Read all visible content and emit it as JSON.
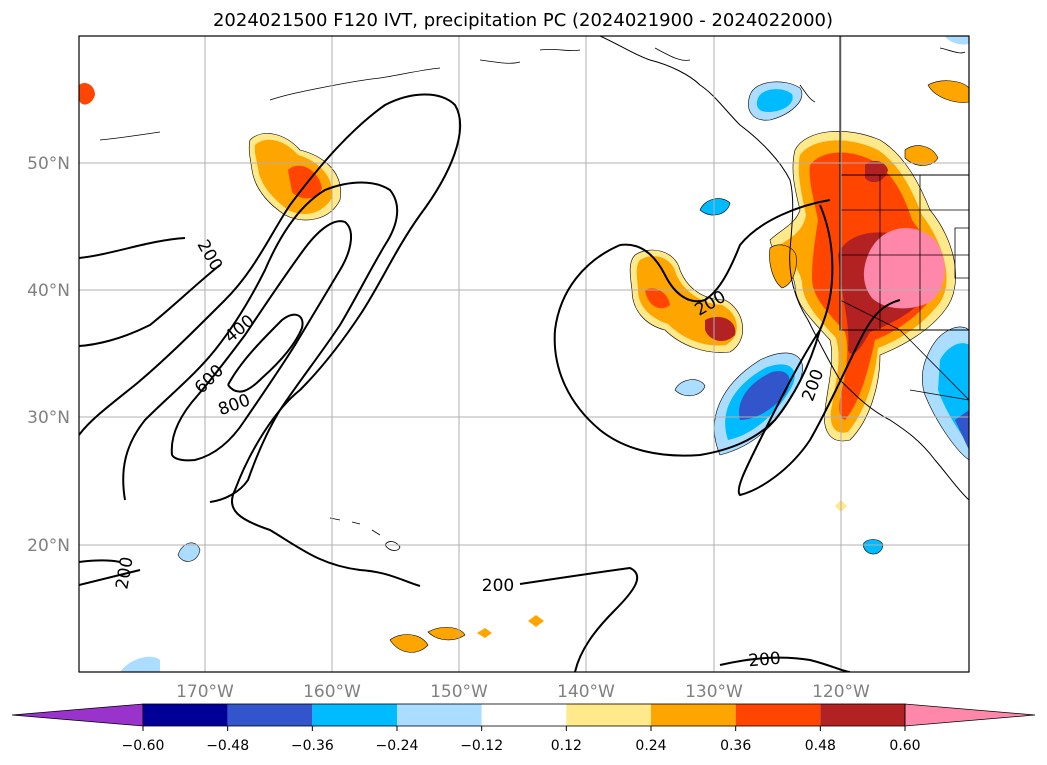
{
  "title": "2024021500 F120 IVT, precipitation PC (2024021900 - 2024022000)",
  "map": {
    "lon_range": [
      -180,
      -110
    ],
    "lat_range": [
      10,
      60
    ],
    "lon_ticks": [
      {
        "value": -170,
        "label": "170°W"
      },
      {
        "value": -160,
        "label": "160°W"
      },
      {
        "value": -150,
        "label": "150°W"
      },
      {
        "value": -140,
        "label": "140°W"
      },
      {
        "value": -130,
        "label": "130°W"
      },
      {
        "value": -120,
        "label": "120°W"
      }
    ],
    "lat_ticks": [
      {
        "value": 20,
        "label": "20°N"
      },
      {
        "value": 30,
        "label": "30°N"
      },
      {
        "value": 40,
        "label": "40°N"
      },
      {
        "value": 50,
        "label": "50°N"
      }
    ],
    "grid": true,
    "contour_labels": [
      {
        "text": "200",
        "lon": -180.0,
        "lat": 0
      },
      {
        "text": "400",
        "lon": 0,
        "lat": 0
      },
      {
        "text": "600",
        "lon": 0,
        "lat": 0
      },
      {
        "text": "800",
        "lon": 0,
        "lat": 0
      },
      {
        "text": "200",
        "lon": 0,
        "lat": 0
      },
      {
        "text": "200",
        "lon": 0,
        "lat": 0
      },
      {
        "text": "200",
        "lon": 0,
        "lat": 0
      },
      {
        "text": "200",
        "lon": 0,
        "lat": 0
      },
      {
        "text": "200",
        "lon": 0,
        "lat": 0
      }
    ]
  },
  "colorbar": {
    "colors": [
      "#9933cc",
      "#000099",
      "#3355cc",
      "#00bbff",
      "#aaddff",
      "#ffffff",
      "#ffe98a",
      "#ffa500",
      "#ff4500",
      "#b22222",
      "#ff88aa"
    ],
    "tick_labels": [
      "−0.60",
      "−0.48",
      "−0.36",
      "−0.24",
      "−0.12",
      "0.12",
      "0.24",
      "0.36",
      "0.48",
      "0.60"
    ]
  }
}
